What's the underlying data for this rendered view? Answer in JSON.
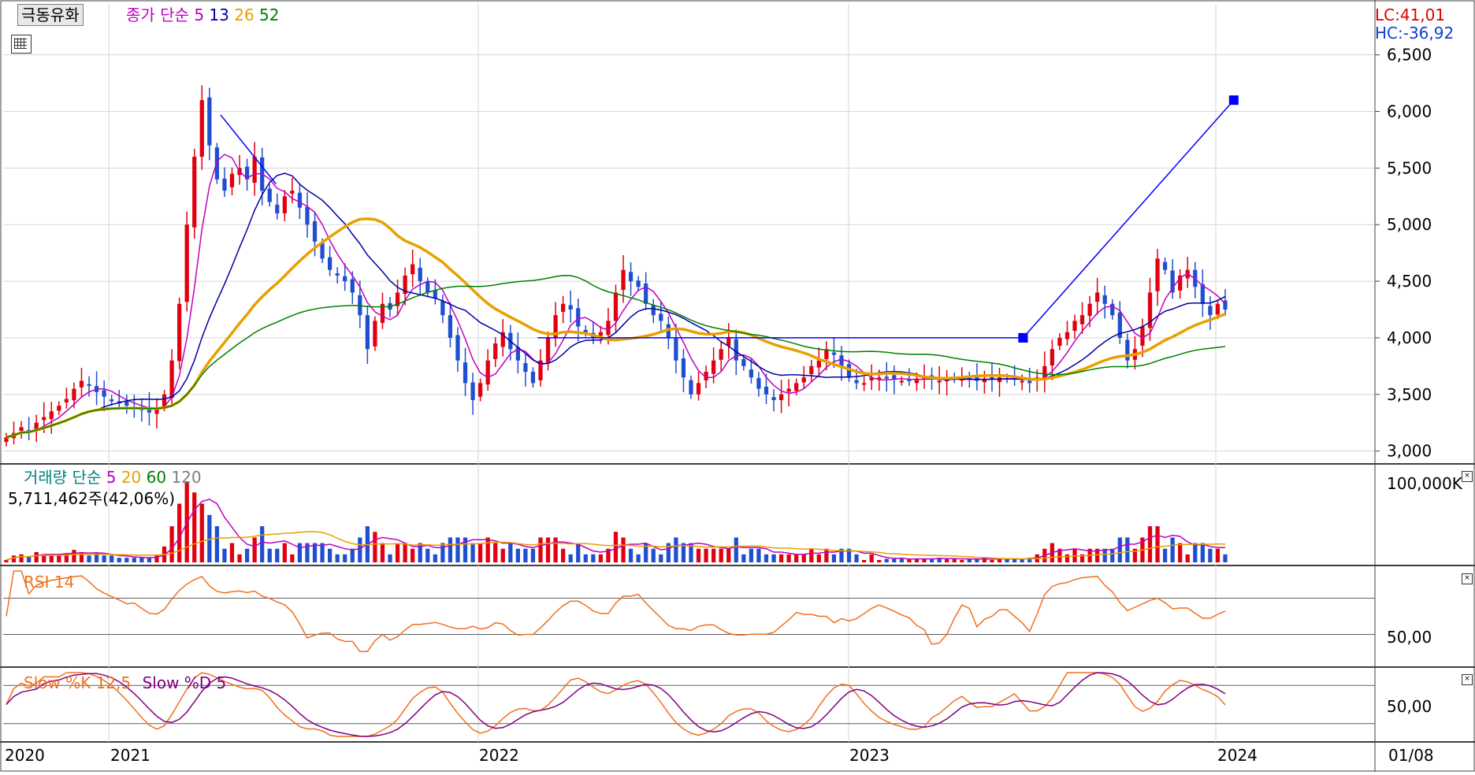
{
  "stock_name": "극동유화",
  "price_panel": {
    "title": "종가 단순",
    "ma_periods": [
      {
        "label": "5",
        "color": "#c000c0"
      },
      {
        "label": "13",
        "color": "#0000a0"
      },
      {
        "label": "26",
        "color": "#e8a000"
      },
      {
        "label": "52",
        "color": "#008000"
      }
    ],
    "lc": "LC:41,01",
    "hc": "HC:-36,92",
    "ticks": [
      "6,500",
      "6,000",
      "5,500",
      "5,000",
      "4,500",
      "4,000",
      "3,500",
      "3,000"
    ],
    "tick_values": [
      6500,
      6000,
      5500,
      5000,
      4500,
      4000,
      3500,
      3000
    ]
  },
  "volume_panel": {
    "title": "거래량 단순",
    "ma_periods": [
      {
        "label": "5",
        "color": "#c000c0"
      },
      {
        "label": "20",
        "color": "#e8a000"
      },
      {
        "label": "60",
        "color": "#008000"
      },
      {
        "label": "120",
        "color": "#808080"
      }
    ],
    "value_text": "5,711,462주(42,06%)",
    "tick": "100,000K"
  },
  "rsi_panel": {
    "title": "RSI 14",
    "tick": "50,00"
  },
  "stoch_panel": {
    "title_k": "Slow %K 12,5",
    "title_d": "Slow %D 5",
    "tick": "50,00"
  },
  "x_axis": {
    "labels": [
      "2020",
      "2021",
      "2022",
      "2023",
      "2024",
      "01/08"
    ]
  },
  "chart_data": {
    "type": "candlestick",
    "price_range": [
      2900,
      6950
    ],
    "close_series": [
      3120,
      3160,
      3210,
      3180,
      3250,
      3300,
      3350,
      3400,
      3460,
      3550,
      3620,
      3580,
      3520,
      3480,
      3440,
      3420,
      3400,
      3380,
      3360,
      3340,
      3380,
      3500,
      3800,
      4300,
      5000,
      5600,
      6100,
      5700,
      5400,
      5300,
      5450,
      5500,
      5400,
      5600,
      5300,
      5200,
      5100,
      5250,
      5300,
      5150,
      5000,
      4850,
      4700,
      4600,
      4550,
      4500,
      4400,
      4200,
      3900,
      4150,
      4300,
      4250,
      4400,
      4550,
      4650,
      4500,
      4400,
      4350,
      4200,
      4000,
      3800,
      3600,
      3450,
      3600,
      3800,
      3950,
      4050,
      3900,
      3800,
      3700,
      3600,
      3800,
      4000,
      4200,
      4300,
      4250,
      4100,
      4050,
      4000,
      4050,
      4150,
      4400,
      4600,
      4500,
      4450,
      4300,
      4200,
      4150,
      4000,
      3800,
      3650,
      3500,
      3600,
      3700,
      3800,
      3900,
      4000,
      3800,
      3750,
      3650,
      3550,
      3500,
      3450,
      3500,
      3550,
      3600,
      3650,
      3750,
      3800,
      3900,
      3850,
      3750,
      3650,
      3600,
      3600,
      3650,
      3650,
      3640,
      3630,
      3620,
      3630,
      3640,
      3650,
      3640,
      3620,
      3630,
      3640,
      3640,
      3630,
      3620,
      3640,
      3640,
      3650,
      3640,
      3630,
      3620,
      3600,
      3650,
      3750,
      3900,
      4000,
      4050,
      4150,
      4200,
      4300,
      4400,
      4300,
      4200,
      4000,
      3800,
      3900,
      4100,
      4400,
      4700,
      4600,
      4400,
      4550,
      4600,
      4450,
      4300,
      4200,
      4300,
      4250
    ],
    "trendlines": [
      {
        "from": [
          0.1585,
          5970
        ],
        "to": [
          0.1989,
          5360
        ]
      },
      {
        "from": [
          0.3896,
          4000
        ],
        "to": [
          0.7435,
          4000
        ]
      },
      {
        "from": [
          0.7435,
          4000
        ],
        "to": [
          0.8971,
          6100
        ]
      }
    ],
    "rsi_reference": 50,
    "stoch_reference": 50
  },
  "colors": {
    "up": "#e0000f",
    "down": "#1f4fd0",
    "ma5": "#c000c0",
    "ma13": "#0000a0",
    "ma26": "#e8a000",
    "ma52": "#008000",
    "rsi": "#f07020",
    "stoch_d": "#800080"
  }
}
